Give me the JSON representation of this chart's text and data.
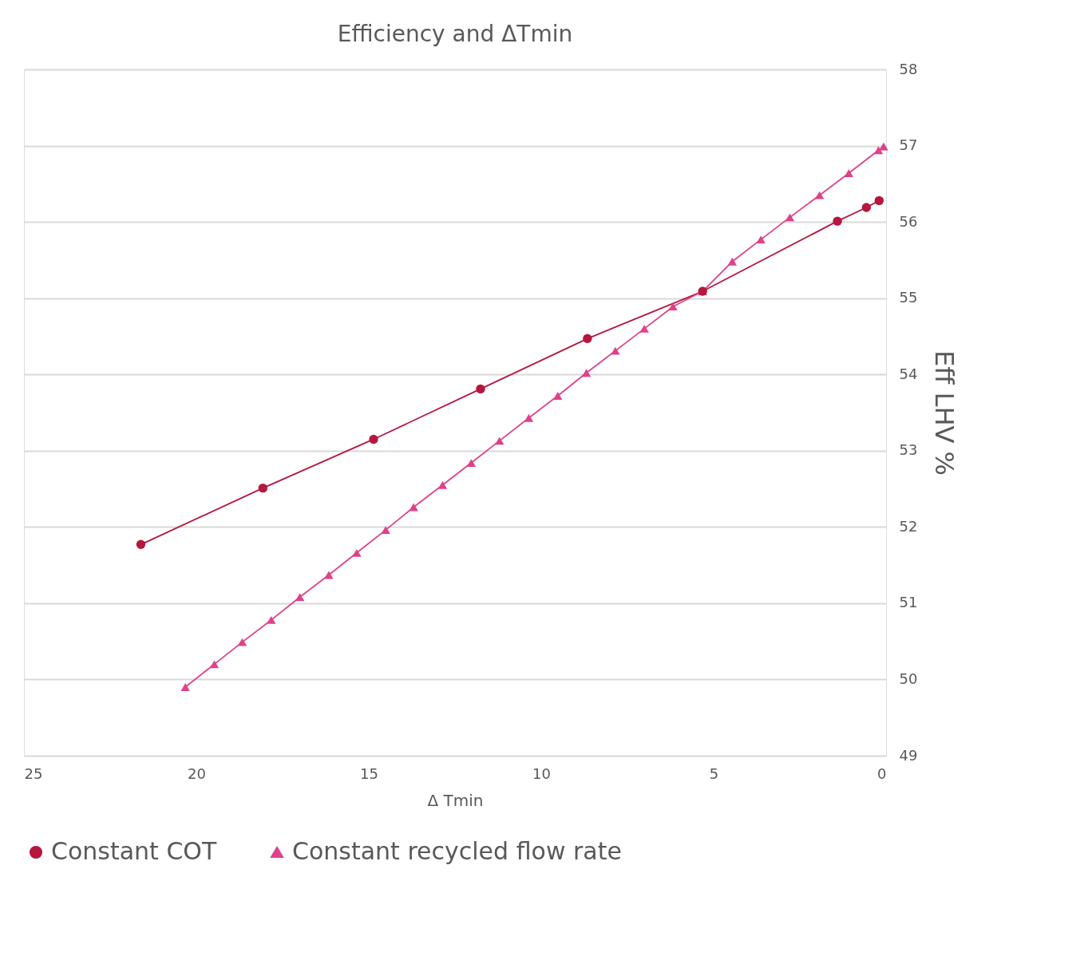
{
  "chart_data": {
    "type": "line",
    "title": "Efficiency and ΔTmin",
    "xlabel": "Δ Tmin",
    "ylabel": "Eff LHV %",
    "xlim": [
      25,
      0
    ],
    "xticks": [
      25,
      20,
      15,
      10,
      5,
      0
    ],
    "ylim": [
      49,
      58
    ],
    "yticks": [
      49,
      50,
      51,
      52,
      53,
      54,
      55,
      56,
      57,
      58
    ],
    "grid": "y",
    "legend": "bottom",
    "line_style": "solid",
    "series": [
      {
        "name": "Constant COT",
        "color": "#b5173f",
        "marker": "circle",
        "x": [
          21.61,
          18.07,
          14.86,
          11.76,
          8.66,
          5.32,
          1.41,
          0.57,
          0.2
        ],
        "values": [
          51.77,
          52.51,
          53.15,
          53.81,
          54.47,
          55.09,
          56.01,
          56.19,
          56.28
        ]
      },
      {
        "name": "Constant recycled flow rate",
        "color": "#e0418a",
        "marker": "triangle",
        "x": [
          20.32,
          19.48,
          18.67,
          17.83,
          17.0,
          16.16,
          15.35,
          14.51,
          13.7,
          12.86,
          12.03,
          11.21,
          10.36,
          9.52,
          8.69,
          7.85,
          7.01,
          6.18,
          5.32,
          4.46,
          3.63,
          2.79,
          1.93,
          1.08,
          0.22,
          0.07
        ],
        "values": [
          49.9,
          50.2,
          50.49,
          50.78,
          51.08,
          51.37,
          51.66,
          51.96,
          52.26,
          52.55,
          52.84,
          53.13,
          53.43,
          53.72,
          54.02,
          54.31,
          54.6,
          54.89,
          55.09,
          55.48,
          55.77,
          56.06,
          56.35,
          56.64,
          56.94,
          56.99
        ]
      }
    ]
  }
}
